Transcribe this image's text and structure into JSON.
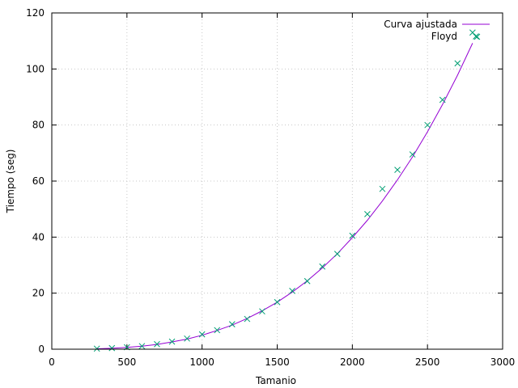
{
  "chart_data": {
    "type": "scatter",
    "xlabel": "Tamanio",
    "ylabel": "Tiempo (seg)",
    "xlim": [
      0,
      3000
    ],
    "ylim": [
      0,
      120
    ],
    "xticks": [
      0,
      500,
      1000,
      1500,
      2000,
      2500,
      3000
    ],
    "yticks": [
      0,
      20,
      40,
      60,
      80,
      100,
      120
    ],
    "xtick_labels": [
      "0",
      "500",
      "1000",
      "1500",
      "2000",
      "2500",
      "3000"
    ],
    "ytick_labels": [
      "0",
      "20",
      "40",
      "60",
      "80",
      "100",
      "120"
    ],
    "grid": true,
    "legend_position": "top-right",
    "series": [
      {
        "name": "Curva ajustada",
        "kind": "line",
        "color": "#9400d3",
        "x": [
          300,
          400,
          500,
          600,
          700,
          800,
          900,
          1000,
          1100,
          1200,
          1300,
          1400,
          1500,
          1600,
          1700,
          1800,
          1900,
          2000,
          2100,
          2200,
          2300,
          2400,
          2500,
          2600,
          2700,
          2800
        ],
        "y": [
          0.14,
          0.33,
          0.63,
          1.1,
          1.7,
          2.6,
          3.6,
          5.0,
          6.7,
          8.6,
          11.0,
          13.7,
          16.8,
          20.4,
          24.4,
          29.0,
          34.1,
          39.8,
          46.0,
          52.9,
          60.4,
          68.6,
          77.6,
          87.3,
          97.8,
          109.2
        ]
      },
      {
        "name": "Floyd",
        "kind": "points",
        "marker": "x",
        "color": "#009e73",
        "x": [
          300,
          400,
          500,
          600,
          700,
          800,
          900,
          1000,
          1100,
          1200,
          1300,
          1400,
          1500,
          1600,
          1700,
          1800,
          1900,
          2000,
          2100,
          2200,
          2300,
          2400,
          2500,
          2600,
          2700,
          2800,
          2830
        ],
        "y": [
          0.2,
          0.4,
          0.7,
          1.1,
          1.8,
          2.7,
          3.8,
          5.3,
          6.8,
          8.9,
          10.8,
          13.5,
          16.8,
          20.8,
          24.3,
          29.5,
          34.0,
          40.5,
          48.2,
          57.2,
          64.0,
          69.5,
          80.0,
          89.0,
          102.0,
          113.0,
          111.5
        ]
      }
    ]
  }
}
